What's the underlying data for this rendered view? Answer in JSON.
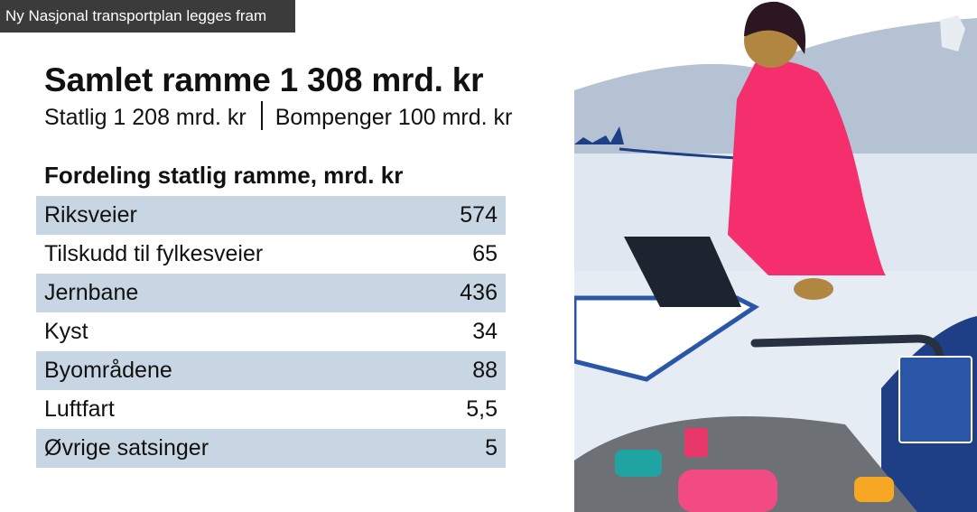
{
  "badge": {
    "text": "Ny Nasjonal transportplan legges fram"
  },
  "title": "Samlet ramme 1 308 mrd. kr",
  "subtitle": {
    "left": "Statlig 1 208 mrd. kr",
    "right": "Bompenger 100 mrd. kr"
  },
  "table": {
    "heading": "Fordeling statlig ramme, mrd. kr",
    "rows": [
      {
        "label": "Riksveier",
        "value": "574"
      },
      {
        "label": "Tilskudd til fylkesveier",
        "value": "65"
      },
      {
        "label": "Jernbane",
        "value": "436"
      },
      {
        "label": "Kyst",
        "value": "34"
      },
      {
        "label": "Byområdene",
        "value": "88"
      },
      {
        "label": "Luftfart",
        "value": "5,5"
      },
      {
        "label": "Øvrige satsinger",
        "value": "5"
      }
    ]
  },
  "colors": {
    "row_shade": "#c8d5e2",
    "badge_bg": "#3b3b3b",
    "jacket": "#f52f6e",
    "navy": "#1e3f86"
  }
}
